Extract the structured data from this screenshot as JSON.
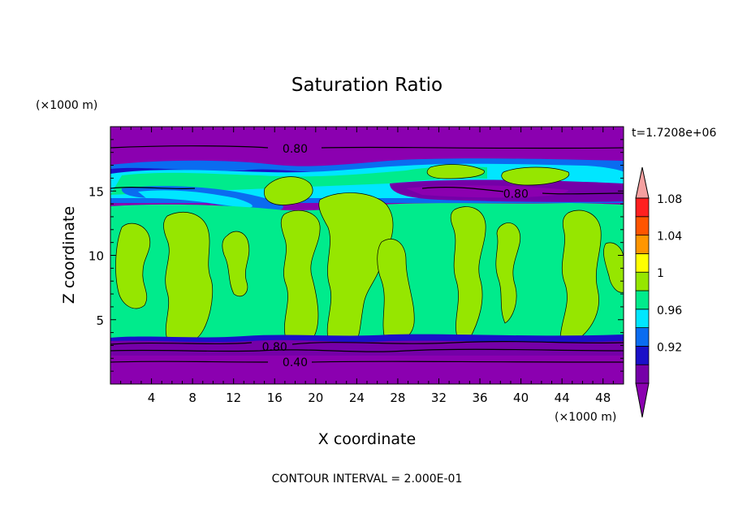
{
  "chart_data": {
    "type": "heatmap",
    "title": "Saturation Ratio",
    "xlabel": "X coordinate",
    "ylabel": "Z coordinate",
    "x_unit": "(×1000 m)",
    "y_unit": "(×1000 m)",
    "time_label": "t=1.7208e+06",
    "footer": "CONTOUR INTERVAL = 2.000E-01",
    "xlim": [
      0,
      50
    ],
    "ylim": [
      0,
      20
    ],
    "x_ticks": [
      4,
      8,
      12,
      16,
      20,
      24,
      28,
      32,
      36,
      40,
      44,
      48
    ],
    "y_ticks": [
      5,
      10,
      15
    ],
    "colorbar": {
      "levels": [
        0.92,
        0.96,
        1,
        1.04,
        1.08
      ],
      "bands": [
        {
          "range": "<0.90",
          "color": "#8b00b0"
        },
        {
          "range": "0.90-0.92",
          "color": "#7500a8"
        },
        {
          "range": "0.92-0.94",
          "color": "#1a10c8"
        },
        {
          "range": "0.94-0.96",
          "color": "#0a6cf0"
        },
        {
          "range": "0.96-0.98",
          "color": "#00e6ff"
        },
        {
          "range": "0.98-1.00",
          "color": "#00eb8c"
        },
        {
          "range": "1.00-1.02",
          "color": "#96e600"
        },
        {
          "range": "1.02-1.04",
          "color": "#ffff00"
        },
        {
          "range": "1.04-1.06",
          "color": "#ff9600"
        },
        {
          "range": "1.06-1.08",
          "color": "#ff5500"
        },
        {
          "range": "1.08-1.10",
          "color": "#ff2020"
        },
        {
          "range": ">1.10",
          "color": "#f5a0a0"
        }
      ]
    },
    "layers": [
      {
        "z_range": [
          0,
          3.3
        ],
        "band": "<0.90"
      },
      {
        "z_range": [
          3.3,
          13.5
        ],
        "band": "0.98-1.00",
        "note": "with 1.00-1.02 patches"
      },
      {
        "z_range": [
          13.5,
          17
        ],
        "band": "0.94-0.98",
        "note": "mixed layer"
      },
      {
        "z_range": [
          17,
          20
        ],
        "band": "<0.90"
      }
    ],
    "contour_labels": [
      {
        "text": "0.80",
        "x": 18,
        "z": 18.3
      },
      {
        "text": "0.80",
        "x": 39.5,
        "z": 14.8
      },
      {
        "text": "0.80",
        "x": 16,
        "z": 2.9
      },
      {
        "text": "0.40",
        "x": 18,
        "z": 1.7
      }
    ]
  }
}
